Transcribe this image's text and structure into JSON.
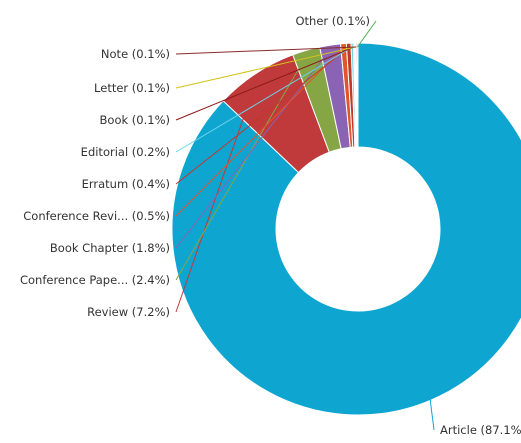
{
  "chart_data": {
    "type": "pie",
    "subtype": "donut",
    "slices": [
      {
        "label": "Article",
        "label_text": "Article (87.1%",
        "value": 87.1,
        "color": "#0ea5d1"
      },
      {
        "label": "Review",
        "label_text": "Review (7.2%)",
        "value": 7.2,
        "color": "#c0393b"
      },
      {
        "label": "Conference Pape...",
        "label_text": "Conference Pape... (2.4%)",
        "value": 2.4,
        "color": "#86a545"
      },
      {
        "label": "Book Chapter",
        "label_text": "Book Chapter (1.8%)",
        "value": 1.8,
        "color": "#8a63b5"
      },
      {
        "label": "Conference Revi...",
        "label_text": "Conference Revi... (0.5%)",
        "value": 0.5,
        "color": "#e0562a"
      },
      {
        "label": "Erratum",
        "label_text": "Erratum (0.4%)",
        "value": 0.4,
        "color": "#c0392b"
      },
      {
        "label": "Editorial",
        "label_text": "Editorial (0.2%)",
        "value": 0.2,
        "color": "#6bd3e4"
      },
      {
        "label": "Book",
        "label_text": "Book (0.1%)",
        "value": 0.1,
        "color": "#8b1a1a"
      },
      {
        "label": "Letter",
        "label_text": "Letter (0.1%)",
        "value": 0.1,
        "color": "#d4c21a"
      },
      {
        "label": "Note",
        "label_text": "Note (0.1%)",
        "value": 0.1,
        "color": "#8b2a2a"
      },
      {
        "label": "Other",
        "label_text": "Other (0.1%)",
        "value": 0.1,
        "color": "#4caf50"
      }
    ]
  }
}
